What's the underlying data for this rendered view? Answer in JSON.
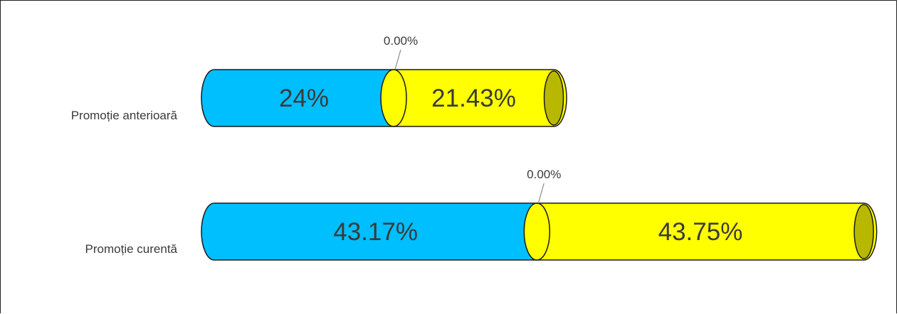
{
  "chart_data": {
    "type": "bar",
    "orientation": "horizontal",
    "stacked": true,
    "style": "3d-cylinder",
    "categories": [
      "Promoție anterioară",
      "Promoție curentă"
    ],
    "series": [
      {
        "values": [
          24,
          43.17
        ],
        "labels": [
          "24%",
          "43.17%"
        ],
        "color": "#00BFFF"
      },
      {
        "values": [
          0,
          0
        ],
        "labels": [
          "0.00%",
          "0.00%"
        ],
        "color": "#808080"
      },
      {
        "values": [
          21.43,
          43.75
        ],
        "labels": [
          "21.43%",
          "43.75%"
        ],
        "color": "#FFFF00"
      }
    ],
    "xlim": [
      0,
      100
    ],
    "grid": false,
    "legend": "none"
  }
}
